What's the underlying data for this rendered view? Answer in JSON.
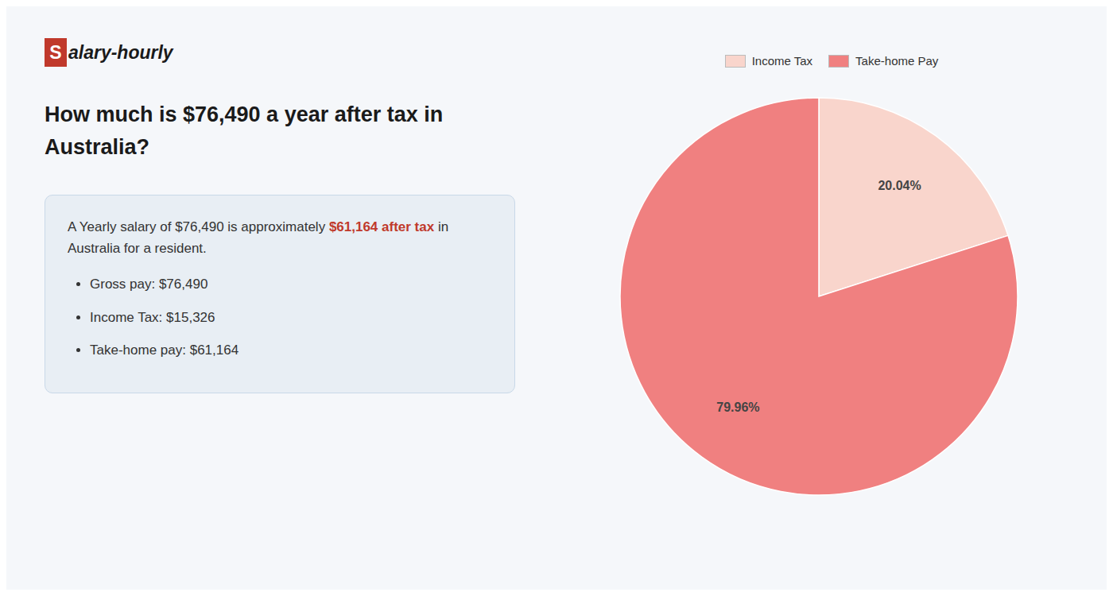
{
  "chart_data": {
    "type": "pie",
    "title": "How much is $76,490 a year after tax in Australia?",
    "categories": [
      "Income Tax",
      "Take-home Pay"
    ],
    "values": [
      20.04,
      79.96
    ],
    "value_labels": [
      "20.04%",
      "79.96%"
    ],
    "colors": [
      "#f9d5cc",
      "#f08080"
    ],
    "data_labels": true,
    "legend": "top",
    "annotations": [
      {
        "text": "S",
        "color": "#ffffff"
      },
      {
        "text": "alary-hourly",
        "color": "#1a1a1a"
      },
      {
        "text": "A Yearly salary of $76,490 is approximately ",
        "color": "#333333"
      },
      {
        "text": "$61,164 after tax",
        "color": "#c0392b"
      },
      {
        "text": " in",
        "color": "#333333"
      },
      {
        "text": "Australia for a resident.",
        "color": "#333333"
      },
      {
        "text": "Gross pay: $76,490",
        "color": "#333333"
      },
      {
        "text": "Income Tax: $15,326",
        "color": "#333333"
      },
      {
        "text": "Take-home pay: $61,164",
        "color": "#333333"
      }
    ]
  }
}
